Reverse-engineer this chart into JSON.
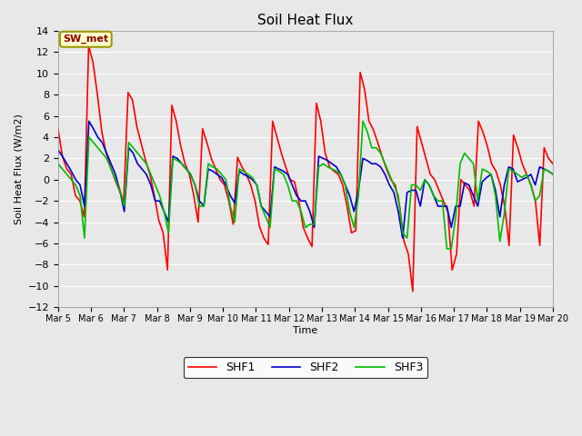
{
  "title": "Soil Heat Flux",
  "ylabel": "Soil Heat Flux (W/m2)",
  "xlabel": "Time",
  "ylim": [
    -12,
    14
  ],
  "yticks": [
    -12,
    -10,
    -8,
    -6,
    -4,
    -2,
    0,
    2,
    4,
    6,
    8,
    10,
    12,
    14
  ],
  "xtick_labels": [
    "Mar 5",
    "Mar 6",
    "Mar 7",
    "Mar 8",
    "Mar 9",
    "Mar 10",
    "Mar 11",
    "Mar 12",
    "Mar 13",
    "Mar 14",
    "Mar 15",
    "Mar 16",
    "Mar 17",
    "Mar 18",
    "Mar 19",
    "Mar 20"
  ],
  "site_label": "SW_met",
  "fig_bg_color": "#e8e8e8",
  "plot_bg_color": "#e8e8e8",
  "grid_color": "#ffffff",
  "shf1_color": "#ff0000",
  "shf2_color": "#0000cc",
  "shf3_color": "#00bb00",
  "linewidth": 1.2,
  "shf1": [
    4.8,
    2.2,
    1.0,
    0.5,
    -1.5,
    -2.0,
    -3.5,
    12.6,
    11.0,
    8.0,
    4.5,
    2.5,
    1.2,
    0.0,
    -1.0,
    -2.0,
    8.2,
    7.5,
    5.0,
    3.4,
    1.8,
    0.5,
    -1.5,
    -3.8,
    -5.0,
    -8.5,
    7.0,
    5.5,
    3.2,
    1.5,
    0.5,
    -1.5,
    -4.0,
    4.8,
    3.5,
    2.0,
    1.0,
    0.0,
    -0.5,
    -2.0,
    -4.2,
    2.1,
    1.2,
    0.5,
    -0.5,
    -2.0,
    -4.4,
    -5.5,
    -6.1,
    5.5,
    4.0,
    2.5,
    1.2,
    0.0,
    -0.2,
    -2.0,
    -4.5,
    -5.5,
    -6.3,
    7.2,
    5.5,
    2.5,
    1.2,
    0.8,
    0.5,
    -0.5,
    -2.5,
    -5.0,
    -4.8,
    10.1,
    8.5,
    5.5,
    4.7,
    3.5,
    2.2,
    1.0,
    0.0,
    -0.5,
    -2.5,
    -5.8,
    -7.0,
    -10.5,
    5.0,
    3.5,
    2.0,
    0.5,
    0.0,
    -1.0,
    -2.0,
    -3.0,
    -8.5,
    -7.0,
    0.0,
    -0.5,
    -1.0,
    -2.5,
    5.5,
    4.5,
    3.2,
    1.5,
    0.8,
    -0.5,
    -2.5,
    -6.2,
    4.2,
    3.0,
    1.5,
    0.5,
    -0.5,
    -2.0,
    -6.2,
    3.0,
    2.0,
    1.5
  ],
  "shf2": [
    2.8,
    2.2,
    1.5,
    0.8,
    0.0,
    -0.5,
    -2.5,
    5.5,
    4.8,
    4.0,
    3.5,
    2.5,
    1.5,
    0.5,
    -1.0,
    -3.0,
    3.0,
    2.5,
    1.5,
    1.0,
    0.5,
    -0.5,
    -2.0,
    -2.0,
    -3.0,
    -4.0,
    2.2,
    2.0,
    1.5,
    1.0,
    0.5,
    -0.5,
    -2.0,
    -2.5,
    1.0,
    0.8,
    0.5,
    0.2,
    -0.5,
    -1.5,
    -2.2,
    0.8,
    0.5,
    0.3,
    0.0,
    -0.5,
    -2.5,
    -3.0,
    -3.5,
    1.2,
    1.0,
    0.8,
    0.5,
    -0.5,
    -1.5,
    -2.0,
    -2.0,
    -3.0,
    -4.5,
    2.2,
    2.0,
    1.8,
    1.5,
    1.2,
    0.5,
    -0.5,
    -1.5,
    -3.0,
    -1.0,
    2.0,
    1.8,
    1.5,
    1.5,
    1.2,
    0.5,
    -0.5,
    -1.2,
    -3.0,
    -5.5,
    -1.2,
    -1.0,
    -1.0,
    -2.5,
    0.0,
    -0.5,
    -1.5,
    -2.5,
    -2.5,
    -2.5,
    -4.5,
    -2.5,
    -2.5,
    -0.3,
    -0.5,
    -1.5,
    -2.5,
    -0.2,
    0.2,
    0.5,
    -1.0,
    -3.5,
    -0.5,
    1.2,
    1.0,
    -0.2,
    0.0,
    0.2,
    0.5,
    -0.5,
    1.2,
    1.0,
    0.8,
    0.5
  ],
  "shf3": [
    1.5,
    1.0,
    0.5,
    0.0,
    -0.5,
    -1.5,
    -5.5,
    4.0,
    3.5,
    3.0,
    2.5,
    2.0,
    1.0,
    0.0,
    -1.0,
    -2.5,
    3.5,
    3.0,
    2.5,
    2.0,
    1.5,
    0.5,
    -0.5,
    -1.5,
    -3.0,
    -5.0,
    2.0,
    1.8,
    1.5,
    1.0,
    0.5,
    -0.5,
    -2.5,
    -2.5,
    1.5,
    1.2,
    1.0,
    0.5,
    0.0,
    -2.5,
    -4.0,
    1.0,
    0.8,
    0.5,
    0.2,
    -0.5,
    -2.5,
    -3.5,
    -4.5,
    1.0,
    0.8,
    0.5,
    -0.5,
    -2.0,
    -2.0,
    -3.0,
    -4.5,
    -4.2,
    -4.2,
    1.2,
    1.5,
    1.2,
    1.0,
    0.8,
    0.5,
    -0.5,
    -3.0,
    -4.5,
    -1.5,
    5.5,
    4.5,
    3.0,
    3.0,
    2.5,
    1.5,
    0.5,
    -0.5,
    -1.5,
    -5.0,
    -5.5,
    -0.5,
    -0.5,
    -1.0,
    0.0,
    -0.5,
    -1.5,
    -2.0,
    -2.0,
    -6.5,
    -6.5,
    -3.5,
    1.5,
    2.5,
    2.0,
    1.5,
    -2.0,
    1.0,
    0.8,
    0.5,
    -1.5,
    -5.8,
    -3.2,
    1.0,
    0.8,
    0.5,
    0.2,
    0.5,
    -0.5,
    -2.0,
    -1.5,
    1.0,
    0.8,
    0.5
  ]
}
